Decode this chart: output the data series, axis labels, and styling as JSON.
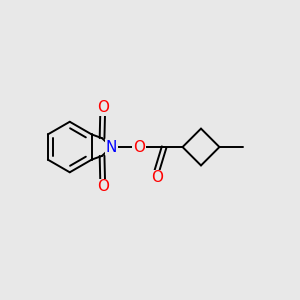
{
  "background_color": "#e8e8e8",
  "bond_color": "#000000",
  "atom_colors": {
    "O": "#ff0000",
    "N": "#0000ff",
    "C": "#000000"
  },
  "font_size_atoms": 11,
  "figsize": [
    3.0,
    3.0
  ],
  "dpi": 100
}
